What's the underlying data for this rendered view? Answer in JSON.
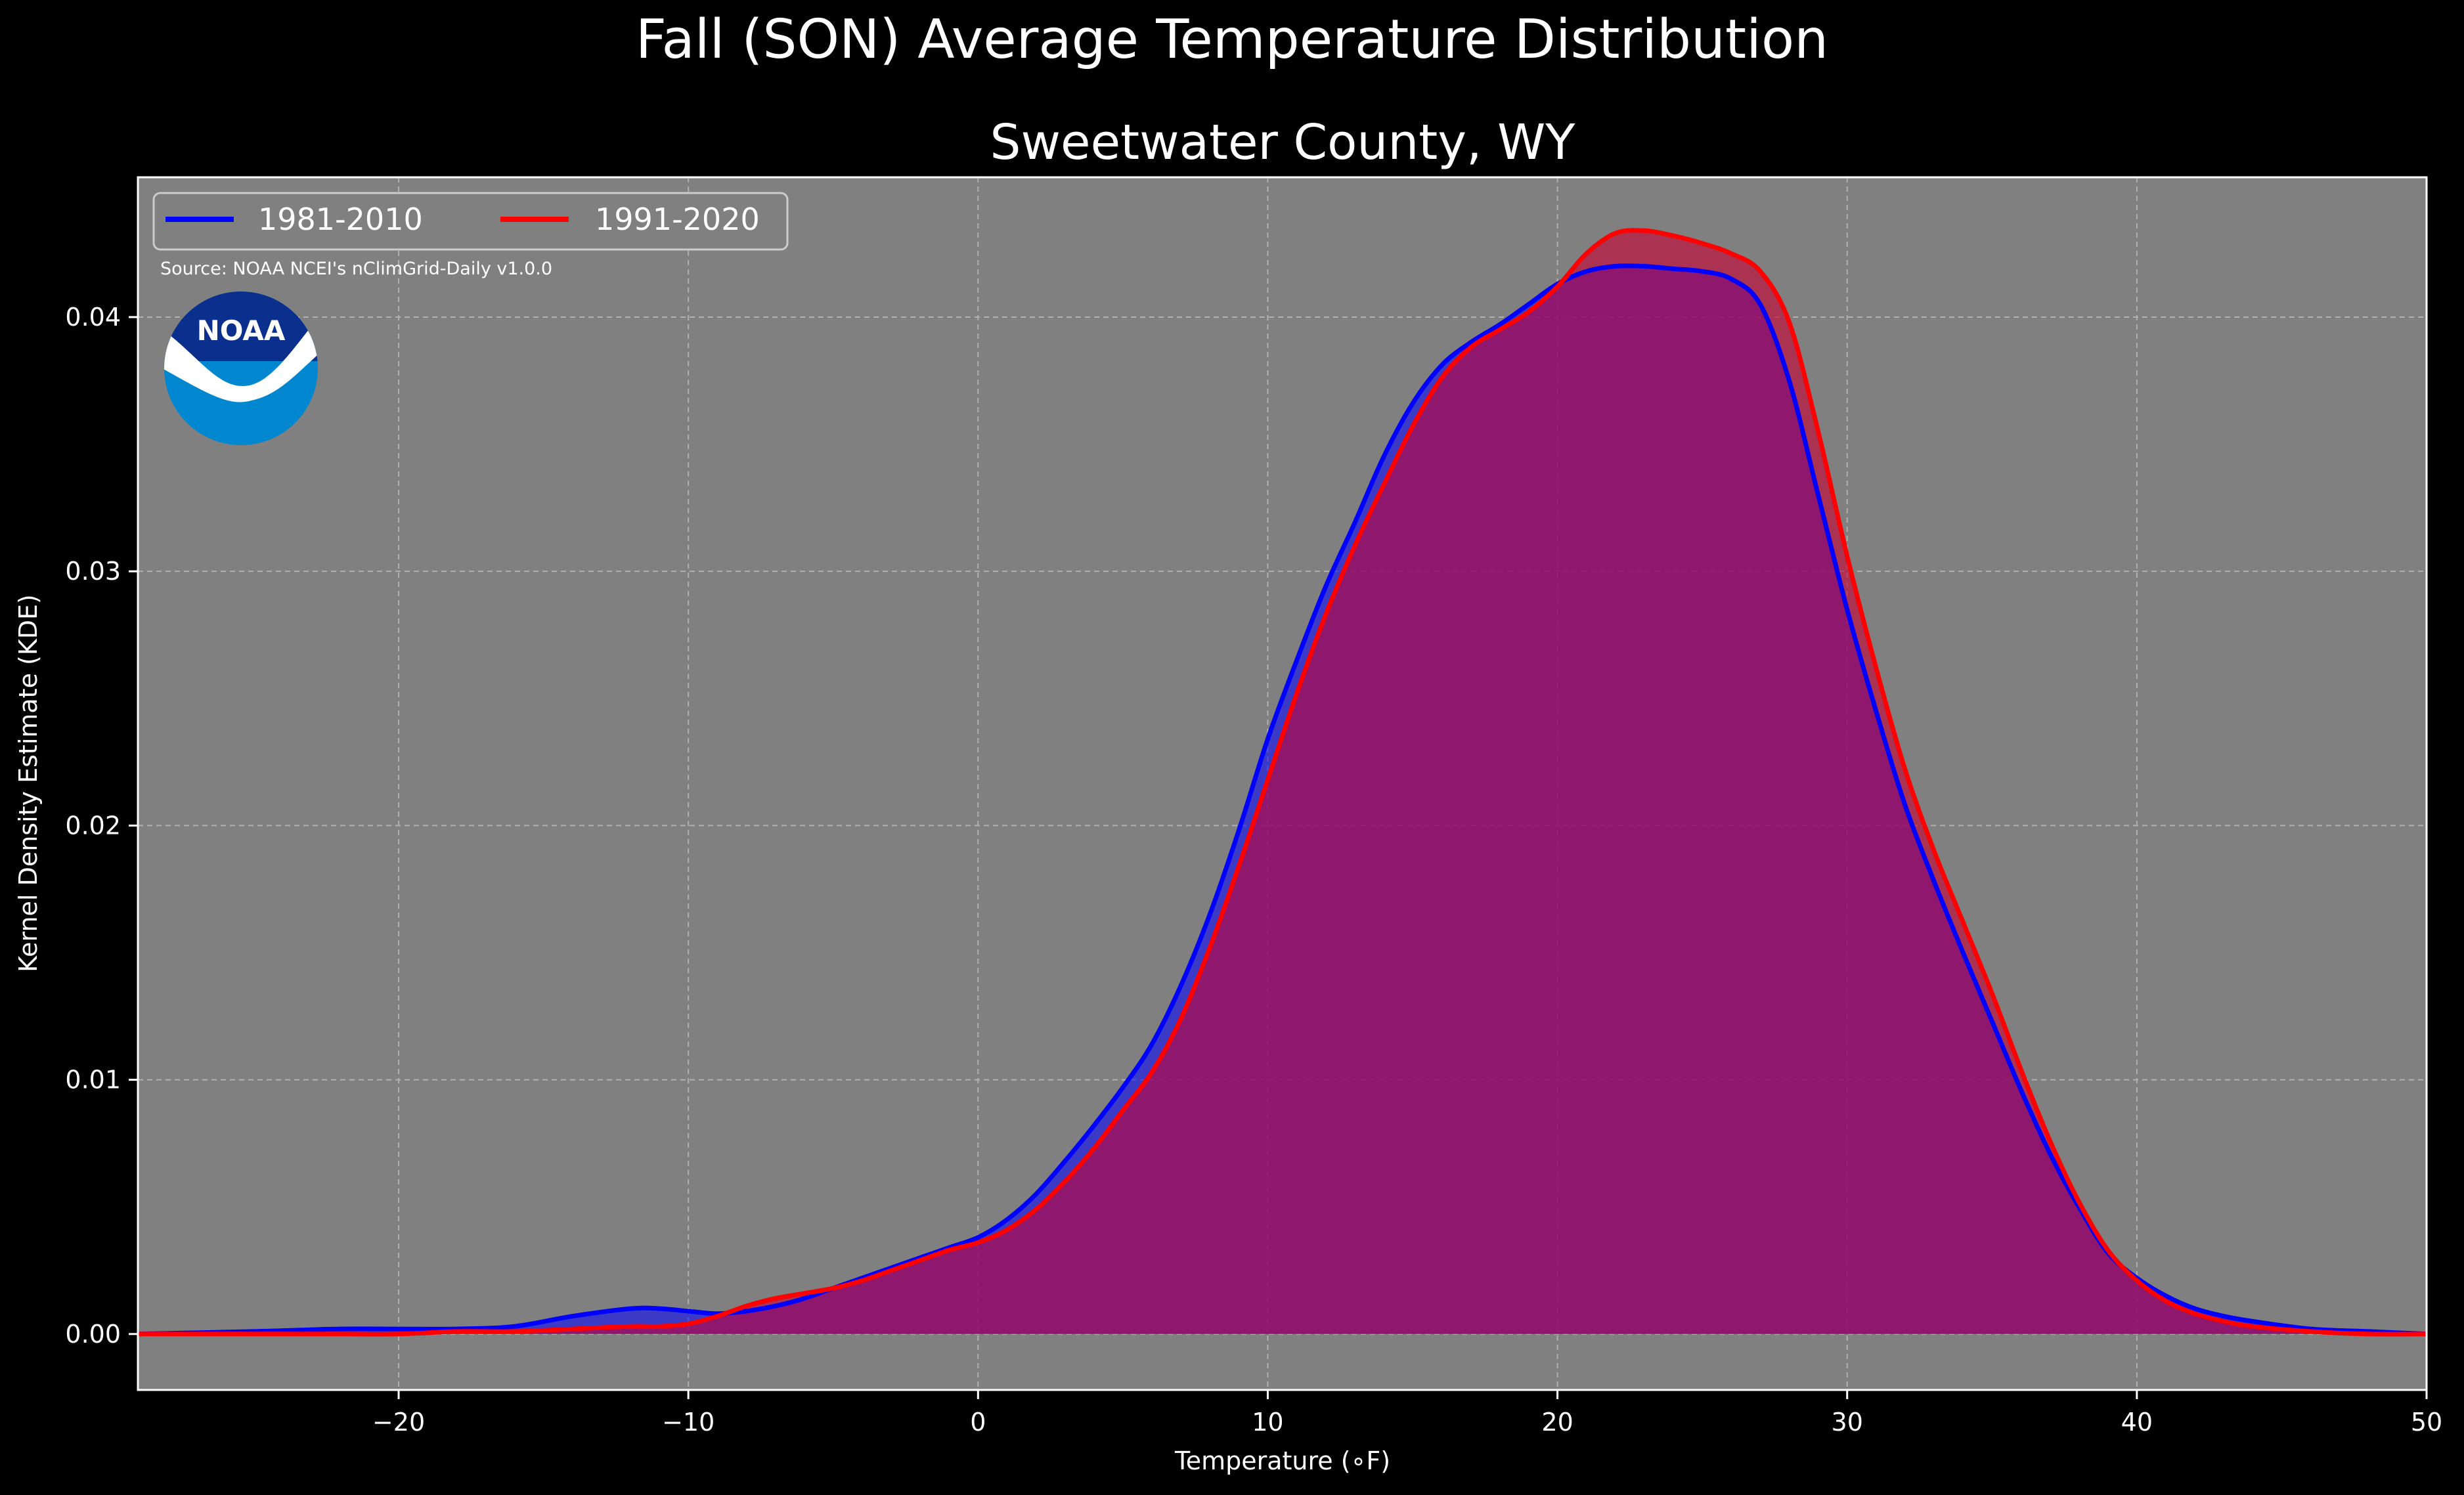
{
  "chart_data": {
    "type": "area",
    "suptitle": "Fall (SON) Average Temperature Distribution",
    "title": "Sweetwater County, WY",
    "xlabel": "Temperature (∘F)",
    "ylabel": "Kernel Density Estimate (KDE)",
    "xlim": [
      -29,
      50
    ],
    "ylim": [
      -0.0022,
      0.0455
    ],
    "xticks": [
      -20,
      -10,
      0,
      10,
      20,
      30,
      40,
      50
    ],
    "xtick_labels": [
      "−20",
      "−10",
      "0",
      "10",
      "20",
      "30",
      "40",
      "50"
    ],
    "yticks": [
      0,
      0.01,
      0.02,
      0.03,
      0.04
    ],
    "ytick_labels": [
      "0.00",
      "0.01",
      "0.02",
      "0.03",
      "0.04"
    ],
    "grid": true,
    "legend_position": "top-left",
    "source_note": "Source: NOAA NCEI's nClimGrid-Daily v1.0.0",
    "logo_text": "NOAA",
    "colors": {
      "background": "#000000",
      "plot_background": "#808080",
      "text": "#ffffff",
      "logo_dark": "#0b2f8c",
      "logo_light": "#0087cf"
    },
    "series": [
      {
        "name": "1981-2010",
        "color": "#0000ff",
        "fill": "rgba(0,0,255,0.55)",
        "x": [
          -29,
          -25,
          -22,
          -20,
          -18,
          -16,
          -14,
          -12,
          -11,
          -10,
          -9,
          -8,
          -7,
          -6,
          -5,
          -4,
          -3,
          -2,
          -1,
          0,
          1,
          2,
          3,
          4,
          5,
          6,
          7,
          8,
          9,
          10,
          11,
          12,
          13,
          14,
          15,
          16,
          17,
          18,
          19,
          20,
          21,
          22,
          23,
          24,
          25,
          26,
          27,
          28,
          29,
          30,
          31,
          32,
          33,
          34,
          35,
          36,
          37,
          38,
          39,
          40,
          41,
          42,
          43,
          44,
          46,
          48,
          50
        ],
        "y": [
          0,
          0.0001,
          0.0002,
          0.0002,
          0.0002,
          0.0003,
          0.0007,
          0.001,
          0.001,
          0.0009,
          0.0008,
          0.0009,
          0.0011,
          0.0014,
          0.0018,
          0.0022,
          0.0026,
          0.003,
          0.0034,
          0.0038,
          0.0045,
          0.0055,
          0.0068,
          0.0082,
          0.0097,
          0.0114,
          0.0137,
          0.0165,
          0.0198,
          0.0234,
          0.0265,
          0.0294,
          0.0319,
          0.0345,
          0.0366,
          0.0381,
          0.039,
          0.0397,
          0.0405,
          0.0413,
          0.0418,
          0.042,
          0.042,
          0.0419,
          0.0418,
          0.0415,
          0.0405,
          0.0375,
          0.033,
          0.0285,
          0.0245,
          0.0208,
          0.0178,
          0.015,
          0.0123,
          0.0096,
          0.0071,
          0.005,
          0.0032,
          0.0022,
          0.0015,
          0.001,
          0.0007,
          0.0005,
          0.0002,
          0.0001,
          0
        ]
      },
      {
        "name": "1991-2020",
        "color": "#ff0000",
        "fill": "rgba(200,0,50,0.6)",
        "x": [
          -29,
          -25,
          -22,
          -20,
          -18,
          -16,
          -14,
          -12,
          -11,
          -10,
          -9,
          -8,
          -7,
          -6,
          -5,
          -4,
          -3,
          -2,
          -1,
          0,
          1,
          2,
          3,
          4,
          5,
          6,
          7,
          8,
          9,
          10,
          11,
          12,
          13,
          14,
          15,
          16,
          17,
          18,
          19,
          20,
          21,
          22,
          23,
          24,
          25,
          26,
          27,
          28,
          29,
          30,
          31,
          32,
          33,
          34,
          35,
          36,
          37,
          38,
          39,
          40,
          41,
          42,
          43,
          44,
          46,
          48,
          50
        ],
        "y": [
          0,
          0,
          0,
          0,
          0.0001,
          0.0001,
          0.0002,
          0.0003,
          0.0003,
          0.0004,
          0.0007,
          0.0011,
          0.0014,
          0.0016,
          0.0018,
          0.0021,
          0.0025,
          0.0029,
          0.0033,
          0.0036,
          0.0041,
          0.0049,
          0.006,
          0.0073,
          0.0088,
          0.0103,
          0.0124,
          0.0152,
          0.0184,
          0.0218,
          0.0252,
          0.0283,
          0.031,
          0.0334,
          0.0357,
          0.0376,
          0.0388,
          0.0395,
          0.0402,
          0.0412,
          0.0425,
          0.0433,
          0.0434,
          0.0432,
          0.0429,
          0.0425,
          0.0418,
          0.0398,
          0.0355,
          0.0306,
          0.0262,
          0.0222,
          0.019,
          0.0162,
          0.0134,
          0.0104,
          0.0076,
          0.0052,
          0.0033,
          0.0021,
          0.0013,
          0.0008,
          0.0005,
          0.0003,
          0.0001,
          0,
          0
        ]
      }
    ]
  }
}
